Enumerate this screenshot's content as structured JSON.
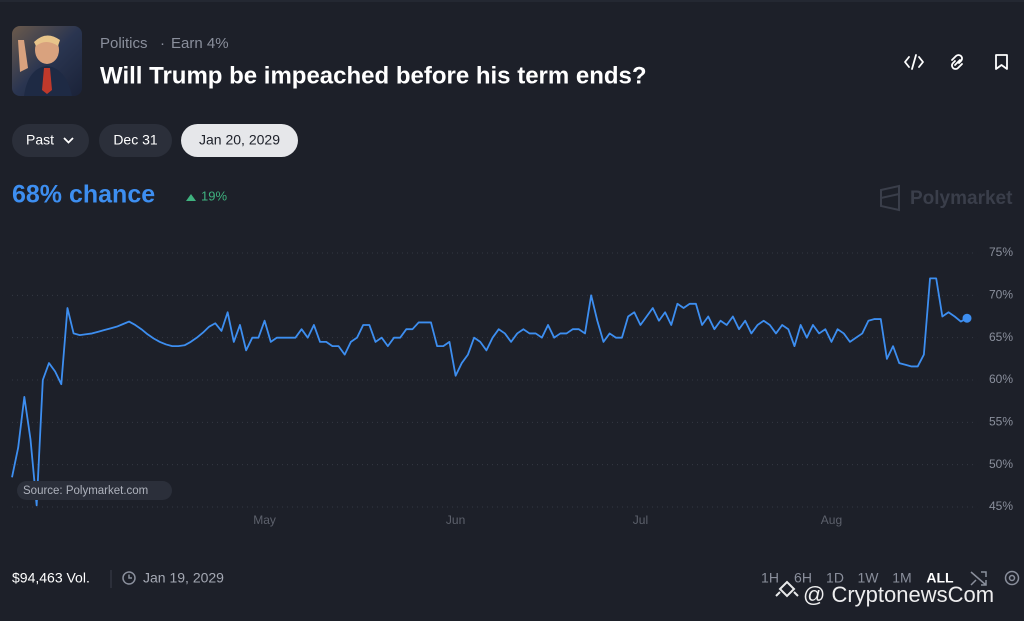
{
  "header": {
    "category": "Politics",
    "reward": "Earn 4%",
    "title": "Will Trump be impeached before his term ends?"
  },
  "date_tabs": [
    "Past",
    "Dec 31",
    "Jan 20, 2029"
  ],
  "chance": {
    "headline": "68% chance",
    "change": "19%"
  },
  "brand": "Polymarket",
  "source": "Source: Polymarket.com",
  "footer": {
    "volume": "$94,463 Vol.",
    "end_date": "Jan 19, 2029",
    "ranges": [
      "1H",
      "6H",
      "1D",
      "1W",
      "1M",
      "ALL"
    ],
    "watermark": "@ CryptonewsCom"
  },
  "chart_data": {
    "type": "line",
    "color": "#3d8ef0",
    "grid": true,
    "values": [
      48.5,
      52,
      58,
      53,
      45.2,
      60,
      62,
      61,
      59.5,
      68.5,
      65.5,
      65.3,
      65.4,
      65.5,
      65.7,
      65.9,
      66.1,
      66.3,
      66.6,
      66.9,
      66.5,
      66,
      65.4,
      64.9,
      64.5,
      64.2,
      64,
      64,
      64.1,
      64.5,
      65,
      65.6,
      66.3,
      66.7,
      65.8,
      68,
      64.5,
      66.5,
      63.5,
      65,
      65,
      67,
      64.5,
      65,
      65,
      65,
      65,
      66,
      65,
      66.5,
      64.5,
      64.5,
      64,
      64,
      63,
      64.5,
      65,
      66.5,
      66.5,
      64.5,
      65,
      64,
      65,
      65,
      66,
      66,
      66.8,
      66.8,
      66.8,
      64,
      64,
      64.5,
      60.5,
      62,
      63,
      65,
      64.5,
      63.5,
      65,
      66,
      65.5,
      64.5,
      65.5,
      66,
      65.5,
      65.5,
      65,
      66.5,
      65,
      65.5,
      65.5,
      66,
      66,
      65.5,
      70,
      67,
      64.5,
      65.5,
      65,
      65,
      67.5,
      68,
      66.5,
      67.5,
      68.5,
      67,
      68,
      66.5,
      69,
      68.5,
      69,
      69,
      66.5,
      67.5,
      66,
      67,
      66.5,
      67.5,
      66,
      67,
      65.5,
      66.5,
      67,
      66.5,
      65.5,
      66.5,
      66,
      64,
      66.5,
      65,
      66.5,
      65.5,
      66,
      64.5,
      66,
      65.5,
      64.5,
      65,
      65.5,
      67,
      67.2,
      67.2,
      62.5,
      64,
      62,
      61.8,
      61.6,
      61.6,
      63,
      72,
      72,
      67.5,
      68,
      67.5,
      66.9,
      67.3
    ],
    "xlim": [
      0,
      155
    ],
    "xticks": [
      {
        "value": 41,
        "label": "May"
      },
      {
        "value": 72,
        "label": "Jun"
      },
      {
        "value": 102,
        "label": "Jul"
      },
      {
        "value": 133,
        "label": "Aug"
      }
    ],
    "ylim": [
      45,
      75
    ],
    "yticks": [
      {
        "value": 75,
        "label": "75%"
      },
      {
        "value": 70,
        "label": "70%"
      },
      {
        "value": 65,
        "label": "65%"
      },
      {
        "value": 60,
        "label": "60%"
      },
      {
        "value": 55,
        "label": "55%"
      },
      {
        "value": 50,
        "label": "50%"
      },
      {
        "value": 45,
        "label": "45%"
      }
    ]
  }
}
